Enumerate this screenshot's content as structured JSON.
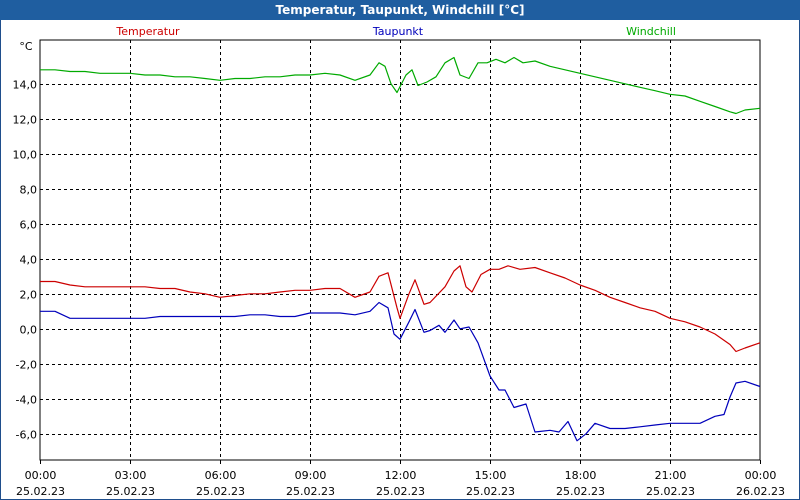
{
  "header": {
    "title": "Temperatur, Taupunkt, Windchill [°C]"
  },
  "colors": {
    "titlebar": "#1F5EA0",
    "temperatur": "#CC0000",
    "taupunkt": "#0000BB",
    "windchill": "#00AA00",
    "grid": "#000000"
  },
  "chart_data": {
    "type": "line",
    "title": "Temperatur, Taupunkt, Windchill [°C]",
    "ylabel": "°C",
    "xlabel": "",
    "ylim": [
      -7.5,
      16.5
    ],
    "xlim": [
      0,
      24
    ],
    "grid": true,
    "legend": "top",
    "y_ticks": [
      "14,0",
      "12,0",
      "10,0",
      "8,0",
      "6,0",
      "4,0",
      "2,0",
      "0,0",
      "-2,0",
      "-4,0",
      "-6,0"
    ],
    "y_tick_values": [
      14,
      12,
      10,
      8,
      6,
      4,
      2,
      0,
      -2,
      -4,
      -6
    ],
    "x_tick_values": [
      0,
      3,
      6,
      9,
      12,
      15,
      18,
      21,
      24
    ],
    "x_ticks": [
      {
        "time": "00:00",
        "date": "25.02.23"
      },
      {
        "time": "03:00",
        "date": "25.02.23"
      },
      {
        "time": "06:00",
        "date": "25.02.23"
      },
      {
        "time": "09:00",
        "date": "25.02.23"
      },
      {
        "time": "12:00",
        "date": "25.02.23"
      },
      {
        "time": "15:00",
        "date": "25.02.23"
      },
      {
        "time": "18:00",
        "date": "25.02.23"
      },
      {
        "time": "21:00",
        "date": "25.02.23"
      },
      {
        "time": "00:00",
        "date": "26.02.23"
      }
    ],
    "series": [
      {
        "name": "Temperatur",
        "color": "#CC0000",
        "points": [
          [
            0,
            2.7
          ],
          [
            0.5,
            2.7
          ],
          [
            1,
            2.5
          ],
          [
            1.5,
            2.4
          ],
          [
            2,
            2.4
          ],
          [
            2.5,
            2.4
          ],
          [
            3,
            2.4
          ],
          [
            3.5,
            2.4
          ],
          [
            4,
            2.3
          ],
          [
            4.5,
            2.3
          ],
          [
            5,
            2.1
          ],
          [
            5.5,
            2.0
          ],
          [
            6,
            1.8
          ],
          [
            6.5,
            1.9
          ],
          [
            7,
            2.0
          ],
          [
            7.5,
            2.0
          ],
          [
            8,
            2.1
          ],
          [
            8.5,
            2.2
          ],
          [
            9,
            2.2
          ],
          [
            9.5,
            2.3
          ],
          [
            10,
            2.3
          ],
          [
            10.5,
            1.8
          ],
          [
            11,
            2.1
          ],
          [
            11.3,
            3.0
          ],
          [
            11.6,
            3.2
          ],
          [
            11.9,
            1.2
          ],
          [
            12.0,
            0.6
          ],
          [
            12.3,
            2.0
          ],
          [
            12.5,
            2.8
          ],
          [
            12.8,
            1.4
          ],
          [
            13.0,
            1.5
          ],
          [
            13.5,
            2.4
          ],
          [
            13.8,
            3.3
          ],
          [
            14.0,
            3.6
          ],
          [
            14.2,
            2.4
          ],
          [
            14.4,
            2.1
          ],
          [
            14.7,
            3.1
          ],
          [
            15.0,
            3.4
          ],
          [
            15.3,
            3.4
          ],
          [
            15.6,
            3.6
          ],
          [
            16.0,
            3.4
          ],
          [
            16.5,
            3.5
          ],
          [
            17.0,
            3.2
          ],
          [
            17.5,
            2.9
          ],
          [
            18.0,
            2.5
          ],
          [
            18.5,
            2.2
          ],
          [
            19.0,
            1.8
          ],
          [
            19.5,
            1.5
          ],
          [
            20.0,
            1.2
          ],
          [
            20.5,
            1.0
          ],
          [
            21.0,
            0.6
          ],
          [
            21.5,
            0.4
          ],
          [
            22.0,
            0.1
          ],
          [
            22.5,
            -0.3
          ],
          [
            23.0,
            -0.9
          ],
          [
            23.2,
            -1.3
          ],
          [
            23.5,
            -1.1
          ],
          [
            24.0,
            -0.8
          ]
        ]
      },
      {
        "name": "Taupunkt",
        "color": "#0000BB",
        "points": [
          [
            0,
            1.0
          ],
          [
            0.5,
            1.0
          ],
          [
            1,
            0.6
          ],
          [
            1.5,
            0.6
          ],
          [
            2,
            0.6
          ],
          [
            2.5,
            0.6
          ],
          [
            3,
            0.6
          ],
          [
            3.5,
            0.6
          ],
          [
            4,
            0.7
          ],
          [
            4.5,
            0.7
          ],
          [
            5,
            0.7
          ],
          [
            5.5,
            0.7
          ],
          [
            6,
            0.7
          ],
          [
            6.5,
            0.7
          ],
          [
            7,
            0.8
          ],
          [
            7.5,
            0.8
          ],
          [
            8,
            0.7
          ],
          [
            8.5,
            0.7
          ],
          [
            9,
            0.9
          ],
          [
            9.5,
            0.9
          ],
          [
            10,
            0.9
          ],
          [
            10.5,
            0.8
          ],
          [
            11,
            1.0
          ],
          [
            11.3,
            1.5
          ],
          [
            11.6,
            1.2
          ],
          [
            11.8,
            -0.3
          ],
          [
            12.0,
            -0.6
          ],
          [
            12.3,
            0.4
          ],
          [
            12.5,
            1.1
          ],
          [
            12.8,
            -0.2
          ],
          [
            13.0,
            -0.1
          ],
          [
            13.3,
            0.2
          ],
          [
            13.5,
            -0.2
          ],
          [
            13.8,
            0.5
          ],
          [
            14.0,
            0.0
          ],
          [
            14.3,
            0.1
          ],
          [
            14.6,
            -0.8
          ],
          [
            15.0,
            -2.7
          ],
          [
            15.3,
            -3.5
          ],
          [
            15.5,
            -3.5
          ],
          [
            15.8,
            -4.5
          ],
          [
            16.2,
            -4.3
          ],
          [
            16.5,
            -5.9
          ],
          [
            17.0,
            -5.8
          ],
          [
            17.3,
            -5.9
          ],
          [
            17.6,
            -5.3
          ],
          [
            17.9,
            -6.4
          ],
          [
            18.2,
            -6.0
          ],
          [
            18.5,
            -5.4
          ],
          [
            19.0,
            -5.7
          ],
          [
            19.5,
            -5.7
          ],
          [
            20.0,
            -5.6
          ],
          [
            20.5,
            -5.5
          ],
          [
            21.0,
            -5.4
          ],
          [
            21.5,
            -5.4
          ],
          [
            22.0,
            -5.4
          ],
          [
            22.5,
            -5.0
          ],
          [
            22.8,
            -4.9
          ],
          [
            23.0,
            -3.9
          ],
          [
            23.2,
            -3.1
          ],
          [
            23.5,
            -3.0
          ],
          [
            24.0,
            -3.3
          ]
        ]
      },
      {
        "name": "Windchill",
        "color": "#00AA00",
        "points": [
          [
            0,
            14.8
          ],
          [
            0.5,
            14.8
          ],
          [
            1,
            14.7
          ],
          [
            1.5,
            14.7
          ],
          [
            2,
            14.6
          ],
          [
            2.5,
            14.6
          ],
          [
            3,
            14.6
          ],
          [
            3.5,
            14.5
          ],
          [
            4,
            14.5
          ],
          [
            4.5,
            14.4
          ],
          [
            5,
            14.4
          ],
          [
            5.5,
            14.3
          ],
          [
            6,
            14.2
          ],
          [
            6.5,
            14.3
          ],
          [
            7,
            14.3
          ],
          [
            7.5,
            14.4
          ],
          [
            8,
            14.4
          ],
          [
            8.5,
            14.5
          ],
          [
            9,
            14.5
          ],
          [
            9.5,
            14.6
          ],
          [
            10,
            14.5
          ],
          [
            10.5,
            14.2
          ],
          [
            11,
            14.5
          ],
          [
            11.3,
            15.2
          ],
          [
            11.5,
            15.0
          ],
          [
            11.7,
            14.0
          ],
          [
            11.9,
            13.5
          ],
          [
            12.2,
            14.5
          ],
          [
            12.4,
            14.8
          ],
          [
            12.6,
            13.9
          ],
          [
            12.9,
            14.1
          ],
          [
            13.2,
            14.4
          ],
          [
            13.5,
            15.2
          ],
          [
            13.8,
            15.5
          ],
          [
            14.0,
            14.5
          ],
          [
            14.3,
            14.3
          ],
          [
            14.6,
            15.2
          ],
          [
            14.9,
            15.2
          ],
          [
            15.2,
            15.4
          ],
          [
            15.5,
            15.2
          ],
          [
            15.8,
            15.5
          ],
          [
            16.1,
            15.2
          ],
          [
            16.5,
            15.3
          ],
          [
            17.0,
            15.0
          ],
          [
            17.5,
            14.8
          ],
          [
            18.0,
            14.6
          ],
          [
            18.5,
            14.4
          ],
          [
            19.0,
            14.2
          ],
          [
            19.5,
            14.0
          ],
          [
            20.0,
            13.8
          ],
          [
            20.5,
            13.6
          ],
          [
            21.0,
            13.4
          ],
          [
            21.5,
            13.3
          ],
          [
            22.0,
            13.0
          ],
          [
            22.5,
            12.7
          ],
          [
            23.0,
            12.4
          ],
          [
            23.2,
            12.3
          ],
          [
            23.5,
            12.5
          ],
          [
            24.0,
            12.6
          ]
        ]
      }
    ]
  }
}
